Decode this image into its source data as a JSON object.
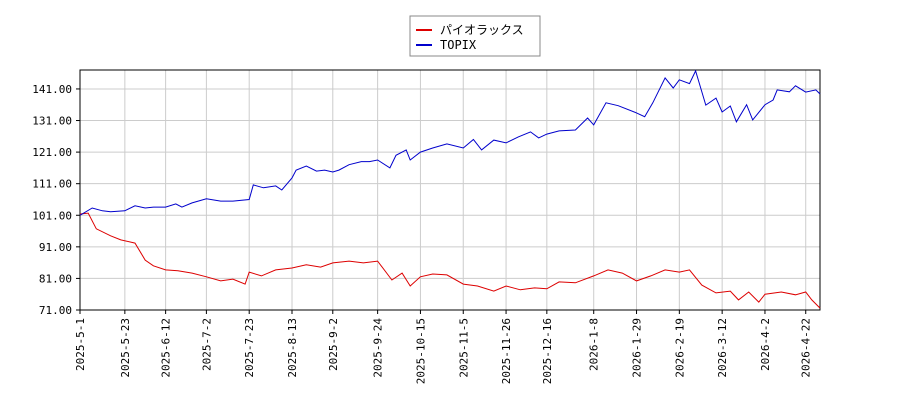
{
  "chart_data": {
    "type": "line",
    "series": [
      {
        "name": "パイオラックス",
        "color": "#dd0000",
        "x": [
          "2025-5-1",
          "2025-5-5",
          "2025-5-9",
          "2025-5-16",
          "2025-5-21",
          "2025-5-28",
          "2025-6-2",
          "2025-6-6",
          "2025-6-12",
          "2025-6-18",
          "2025-6-25",
          "2025-7-2",
          "2025-7-9",
          "2025-7-15",
          "2025-7-21",
          "2025-7-23",
          "2025-7-29",
          "2025-8-5",
          "2025-8-13",
          "2025-8-20",
          "2025-8-27",
          "2025-9-2",
          "2025-9-10",
          "2025-9-17",
          "2025-9-24",
          "2025-10-1",
          "2025-10-6",
          "2025-10-10",
          "2025-10-15",
          "2025-10-21",
          "2025-10-28",
          "2025-11-5",
          "2025-11-12",
          "2025-11-20",
          "2025-11-26",
          "2025-12-3",
          "2025-12-10",
          "2025-12-16",
          "2025-12-22",
          "2025-12-30",
          "2026-1-8",
          "2026-1-15",
          "2026-1-22",
          "2026-1-29",
          "2026-2-5",
          "2026-2-12",
          "2026-2-19",
          "2026-2-24",
          "2026-3-2",
          "2026-3-9",
          "2026-3-16",
          "2026-3-20",
          "2026-3-25",
          "2026-3-30",
          "2026-4-2",
          "2026-4-10",
          "2026-4-17",
          "2026-4-22",
          "2026-4-25",
          "2026-4-29"
        ],
        "values": [
          101.4,
          101.7,
          96.7,
          94.5,
          93.2,
          92.2,
          86.8,
          85,
          83.7,
          83.4,
          82.7,
          81.5,
          80.2,
          80.8,
          79.2,
          83,
          81.8,
          83.7,
          84.3,
          85.3,
          84.6,
          85.9,
          86.5,
          85.9,
          86.5,
          80.5,
          82.7,
          78.6,
          81.5,
          82.4,
          82.1,
          79.2,
          78.6,
          77,
          78.6,
          77.4,
          78,
          77.7,
          79.9,
          79.6,
          81.8,
          83.7,
          82.7,
          80.2,
          81.8,
          83.7,
          83,
          83.7,
          78.9,
          76.4,
          77,
          74.2,
          76.7,
          73.5,
          76,
          76.7,
          75.8,
          76.7,
          74.2,
          71.6
        ]
      },
      {
        "name": "TOPIX",
        "color": "#0000cc",
        "x": [
          "2025-5-1",
          "2025-5-7",
          "2025-5-12",
          "2025-5-16",
          "2025-5-23",
          "2025-5-28",
          "2025-6-2",
          "2025-6-6",
          "2025-6-12",
          "2025-6-17",
          "2025-6-20",
          "2025-6-25",
          "2025-7-2",
          "2025-7-9",
          "2025-7-15",
          "2025-7-23",
          "2025-7-25",
          "2025-7-30",
          "2025-8-5",
          "2025-8-8",
          "2025-8-13",
          "2025-8-15",
          "2025-8-20",
          "2025-8-25",
          "2025-8-29",
          "2025-9-2",
          "2025-9-5",
          "2025-9-10",
          "2025-9-16",
          "2025-9-20",
          "2025-9-24",
          "2025-9-30",
          "2025-10-3",
          "2025-10-8",
          "2025-10-10",
          "2025-10-15",
          "2025-10-21",
          "2025-10-28",
          "2025-11-5",
          "2025-11-10",
          "2025-11-14",
          "2025-11-20",
          "2025-11-26",
          "2025-12-2",
          "2025-12-8",
          "2025-12-12",
          "2025-12-16",
          "2025-12-22",
          "2025-12-30",
          "2026-1-5",
          "2026-1-8",
          "2026-1-14",
          "2026-1-20",
          "2026-1-29",
          "2026-2-2",
          "2026-2-6",
          "2026-2-12",
          "2026-2-16",
          "2026-2-19",
          "2026-2-24",
          "2026-2-27",
          "2026-3-4",
          "2026-3-9",
          "2026-3-12",
          "2026-3-16",
          "2026-3-19",
          "2026-3-24",
          "2026-3-27",
          "2026-4-2",
          "2026-4-6",
          "2026-4-8",
          "2026-4-14",
          "2026-4-17",
          "2026-4-22",
          "2026-4-27",
          "2026-4-29"
        ],
        "values": [
          101,
          103.3,
          102.4,
          102.1,
          102.4,
          104,
          103.3,
          103.6,
          103.6,
          104.6,
          103.6,
          104.9,
          106.2,
          105.5,
          105.5,
          106,
          110.6,
          109.7,
          110.3,
          109,
          112.8,
          115.3,
          116.6,
          115,
          115.3,
          114.7,
          115.3,
          117,
          118,
          118,
          118.5,
          116,
          120,
          121.7,
          118.5,
          121,
          122.3,
          123.6,
          122.3,
          125,
          121.7,
          124.8,
          123.9,
          125.8,
          127.4,
          125.5,
          126.7,
          127.7,
          128,
          131.8,
          129.6,
          136.6,
          135.7,
          133.4,
          132.2,
          136.6,
          144.5,
          141.3,
          143.9,
          142.7,
          146.7,
          135.9,
          138.1,
          133.7,
          135.6,
          130.6,
          136,
          131.2,
          136,
          137.5,
          140.7,
          140.1,
          142,
          140,
          140.7,
          139.4
        ]
      }
    ],
    "xlim": [
      "2025-5-1",
      "2026-4-29"
    ],
    "xticks": [
      "2025-5-1",
      "2025-5-23",
      "2025-6-12",
      "2025-7-2",
      "2025-7-23",
      "2025-8-13",
      "2025-9-2",
      "2025-9-24",
      "2025-10-15",
      "2025-11-5",
      "2025-11-26",
      "2025-12-16",
      "2026-1-8",
      "2026-1-29",
      "2026-2-19",
      "2026-3-12",
      "2026-4-2",
      "2026-4-22"
    ],
    "ylim": [
      71,
      147
    ],
    "yticks": [
      {
        "value": 71,
        "label": "71.00"
      },
      {
        "value": 81,
        "label": "81.00"
      },
      {
        "value": 91,
        "label": "91.00"
      },
      {
        "value": 101,
        "label": "101.00"
      },
      {
        "value": 111,
        "label": "111.00"
      },
      {
        "value": 121,
        "label": "121.00"
      },
      {
        "value": 131,
        "label": "131.00"
      },
      {
        "value": 141,
        "label": "141.00"
      }
    ],
    "grid": true,
    "legend": "top"
  }
}
